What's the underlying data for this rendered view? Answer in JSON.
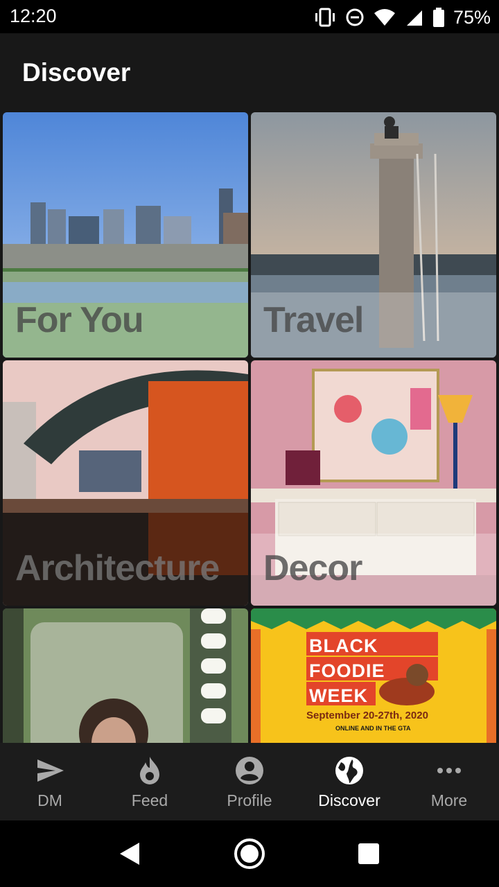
{
  "status_bar": {
    "time": "12:20",
    "battery": "75%"
  },
  "header": {
    "title": "Discover"
  },
  "tiles": [
    {
      "label": "For You"
    },
    {
      "label": "Travel"
    },
    {
      "label": "Architecture"
    },
    {
      "label": "Decor"
    },
    {
      "label": ""
    },
    {
      "label": "",
      "poster": {
        "line1": "BLACK",
        "line2": "FOODIE",
        "line3": "WEEK",
        "dates": "September 20-27th, 2020",
        "sub": "ONLINE AND IN THE GTA"
      }
    }
  ],
  "bottom_nav": [
    {
      "label": "DM",
      "icon": "send-icon"
    },
    {
      "label": "Feed",
      "icon": "flame-icon"
    },
    {
      "label": "Profile",
      "icon": "account-icon"
    },
    {
      "label": "Discover",
      "icon": "globe-icon",
      "active": true
    },
    {
      "label": "More",
      "icon": "more-dots-icon"
    }
  ]
}
